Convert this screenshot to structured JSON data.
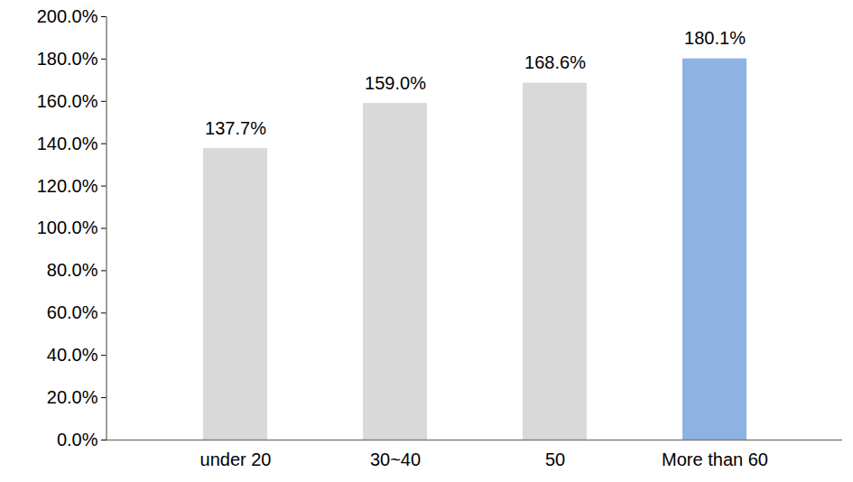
{
  "chart_data": {
    "type": "bar",
    "categories": [
      "under 20",
      "30~40",
      "50",
      "More than 60"
    ],
    "values": [
      137.7,
      159.0,
      168.6,
      180.1
    ],
    "value_labels": [
      "137.7%",
      "159.0%",
      "168.6%",
      "180.1%"
    ],
    "colors": [
      "#d9d9d9",
      "#d9d9d9",
      "#d9d9d9",
      "#8db3e2"
    ],
    "ylim": [
      0,
      200
    ],
    "yticks": [
      {
        "value": 0,
        "label": "0.0%"
      },
      {
        "value": 20,
        "label": "20.0%"
      },
      {
        "value": 40,
        "label": "40.0%"
      },
      {
        "value": 60,
        "label": "60.0%"
      },
      {
        "value": 80,
        "label": "80.0%"
      },
      {
        "value": 100,
        "label": "100.0%"
      },
      {
        "value": 120,
        "label": "120.0%"
      },
      {
        "value": 140,
        "label": "140.0%"
      },
      {
        "value": 160,
        "label": "160.0%"
      },
      {
        "value": 180,
        "label": "180.0%"
      },
      {
        "value": 200,
        "label": "200.0%"
      }
    ],
    "grid": false,
    "data_labels": true
  }
}
